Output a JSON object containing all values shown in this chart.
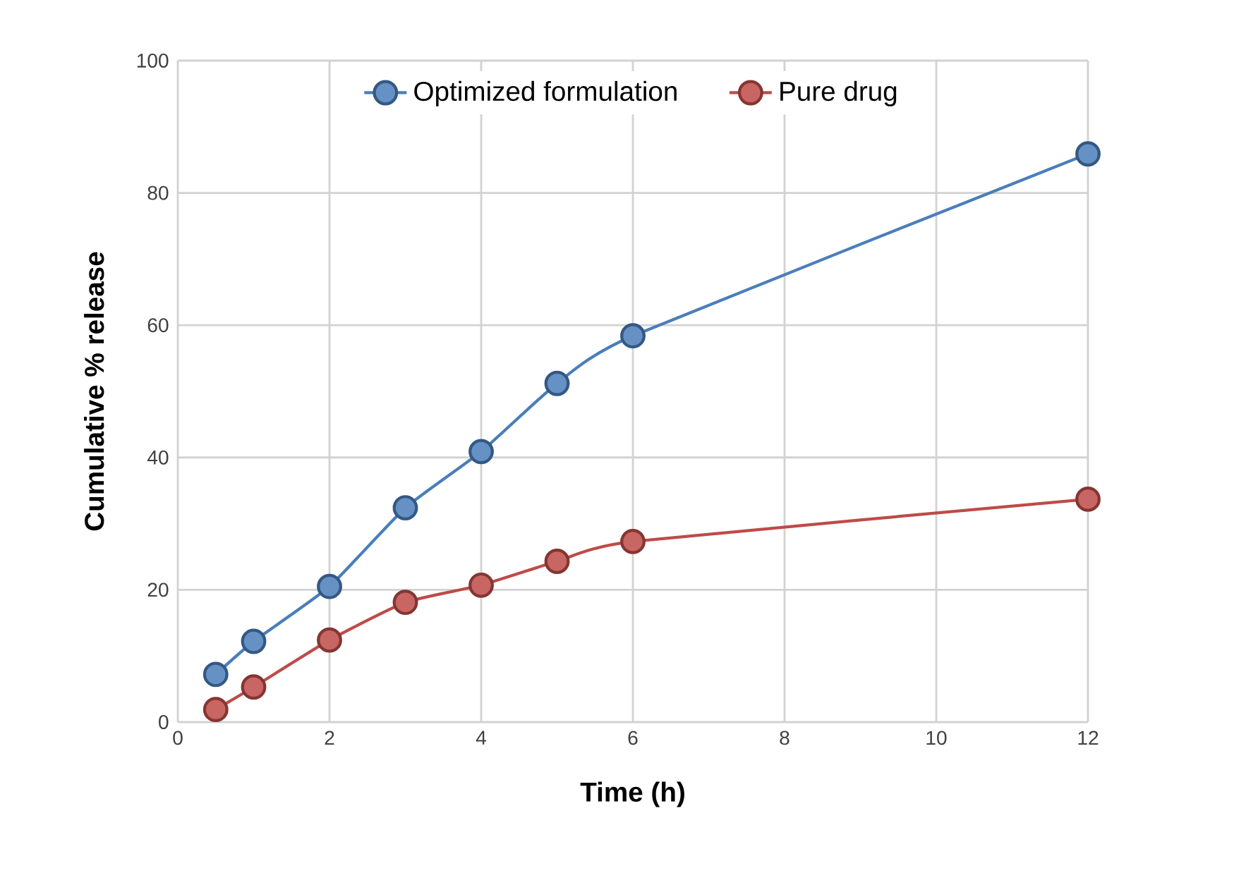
{
  "chart_data": {
    "type": "line",
    "xlabel": "Time (h)",
    "ylabel": "Cumulative % release",
    "x": [
      0.5,
      1,
      2,
      3,
      4,
      5,
      6,
      12
    ],
    "series": [
      {
        "name": "Optimized formulation",
        "color": "#4a7ebb",
        "values": [
          7.2,
          12.2,
          20.5,
          32.4,
          40.9,
          51.2,
          58.4,
          85.9
        ]
      },
      {
        "name": "Pure drug",
        "color": "#be4b48",
        "values": [
          1.9,
          5.3,
          12.4,
          18.1,
          20.7,
          24.3,
          27.3,
          33.7
        ]
      }
    ],
    "xlim": [
      0,
      12
    ],
    "xticks": [
      0,
      2,
      4,
      6,
      8,
      10,
      12
    ],
    "ylim": [
      0,
      100
    ],
    "yticks": [
      0,
      20,
      40,
      60,
      80,
      100
    ],
    "grid": true,
    "legend": "top",
    "marker": "circle",
    "line_style": "solid"
  }
}
